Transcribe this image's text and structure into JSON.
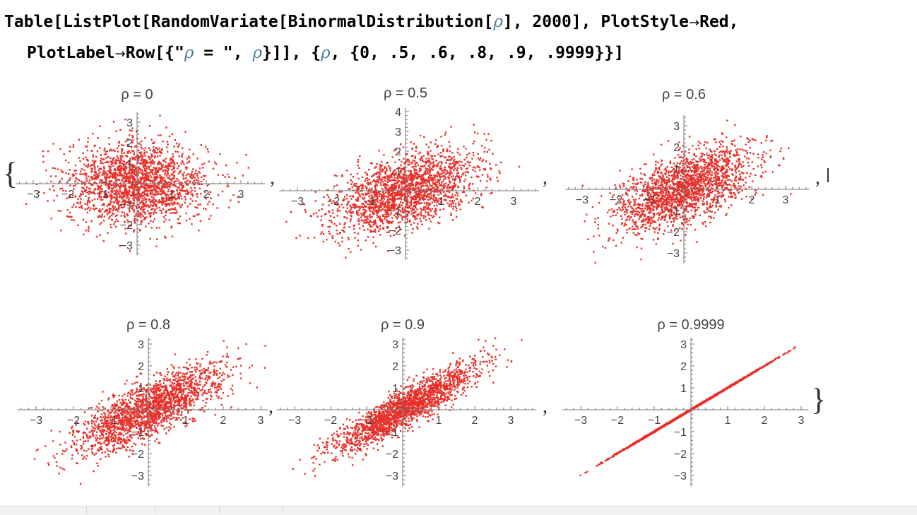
{
  "code": {
    "line1": {
      "a": "Table[ListPlot[RandomVariate[BinormalDistribution[",
      "rho": "ρ",
      "b": "], 2000], PlotStyle",
      "arrow": "→",
      "c": "Red,"
    },
    "line2": {
      "a": "PlotLabel",
      "arrow": "→",
      "b": "Row[{\"",
      "rho1": "ρ",
      "c": " = \", ",
      "rho2": "ρ",
      "d": "}]], {",
      "rho3": "ρ",
      "e": ", {0, .5, .6, .8, .9, .9999}}]"
    }
  },
  "output": {
    "open_brace": "{",
    "close_brace": "}",
    "separator": ","
  },
  "colors": {
    "points": "#e8302a",
    "axis": "#777777",
    "symbol": "#4a7f97"
  },
  "chart_data": [
    {
      "type": "scatter",
      "title": "ρ = 0",
      "rho": 0,
      "n_points": 2000,
      "distribution": "BinormalDistribution[0]",
      "xlim": [
        -3.5,
        3.7
      ],
      "ylim": [
        -3.5,
        3.5
      ],
      "xticks": [
        -3,
        -2,
        -1,
        1,
        2,
        3
      ],
      "yticks": [
        -3,
        -2,
        -1,
        1,
        2,
        3
      ],
      "color": "#e8302a"
    },
    {
      "type": "scatter",
      "title": "ρ = 0.5",
      "rho": 0.5,
      "n_points": 2000,
      "distribution": "BinormalDistribution[0.5]",
      "xlim": [
        -3.5,
        3.7
      ],
      "ylim": [
        -3.5,
        4.2
      ],
      "xticks": [
        -3,
        -2,
        -1,
        1,
        2,
        3
      ],
      "yticks": [
        -3,
        -2,
        -1,
        1,
        2,
        3,
        4
      ],
      "color": "#e8302a"
    },
    {
      "type": "scatter",
      "title": "ρ = 0.6",
      "rho": 0.6,
      "n_points": 2000,
      "distribution": "BinormalDistribution[0.6]",
      "xlim": [
        -3.5,
        3.7
      ],
      "ylim": [
        -3.5,
        3.5
      ],
      "xticks": [
        -3,
        -2,
        -1,
        1,
        2,
        3
      ],
      "yticks": [
        -3,
        -2,
        -1,
        1,
        2,
        3
      ],
      "color": "#e8302a"
    },
    {
      "type": "scatter",
      "title": "ρ = 0.8",
      "rho": 0.8,
      "n_points": 2000,
      "distribution": "BinormalDistribution[0.8]",
      "xlim": [
        -3.5,
        3.2
      ],
      "ylim": [
        -3.5,
        3.3
      ],
      "xticks": [
        -3,
        -2,
        -1,
        1,
        2,
        3
      ],
      "yticks": [
        -3,
        -2,
        -1,
        1,
        2,
        3
      ],
      "color": "#e8302a"
    },
    {
      "type": "scatter",
      "title": "ρ = 0.9",
      "rho": 0.9,
      "n_points": 2000,
      "distribution": "BinormalDistribution[0.9]",
      "xlim": [
        -3.5,
        3.7
      ],
      "ylim": [
        -3.5,
        3.3
      ],
      "xticks": [
        -3,
        -2,
        -1,
        1,
        2,
        3
      ],
      "yticks": [
        -3,
        -2,
        -1,
        1,
        2,
        3
      ],
      "color": "#e8302a"
    },
    {
      "type": "scatter",
      "title": "ρ = 0.9999",
      "rho": 0.9999,
      "n_points": 2000,
      "distribution": "BinormalDistribution[0.9999]",
      "xlim": [
        -3.5,
        3.2
      ],
      "ylim": [
        -3.5,
        3.3
      ],
      "xticks": [
        -3,
        -2,
        -1,
        1,
        2,
        3
      ],
      "yticks": [
        -3,
        -2,
        -1,
        1,
        2,
        3
      ],
      "color": "#e8302a"
    }
  ]
}
